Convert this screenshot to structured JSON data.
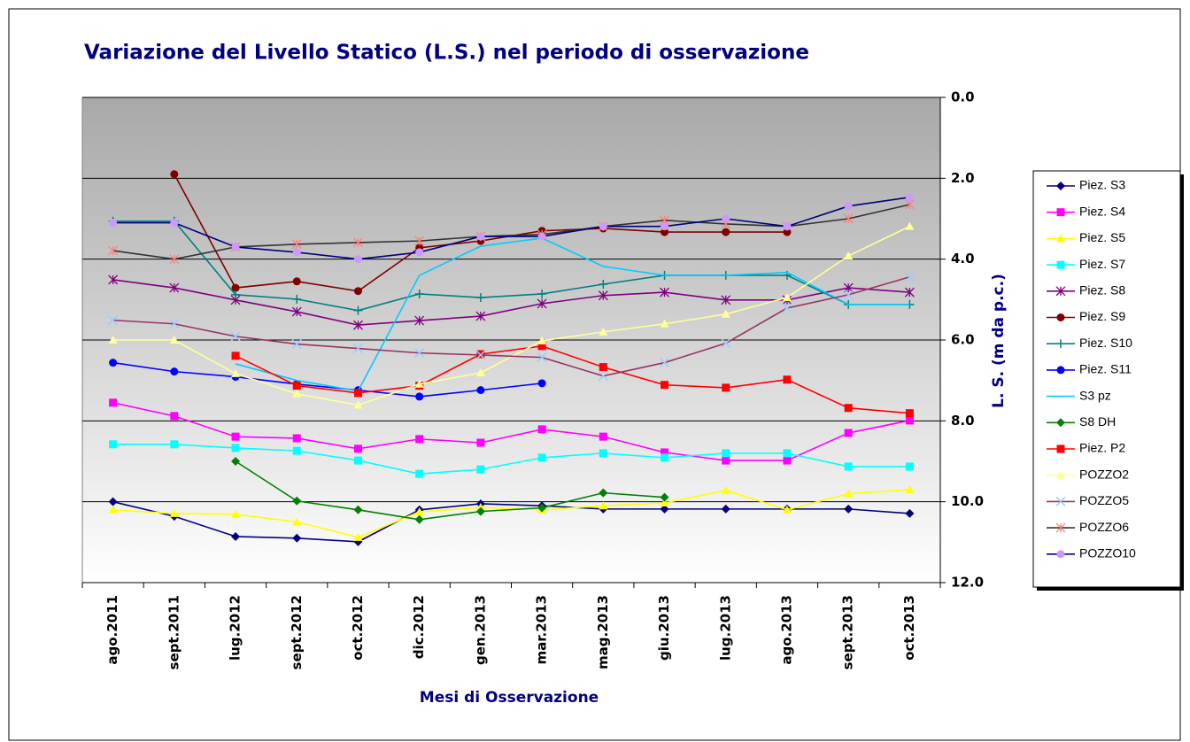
{
  "chart_data": {
    "type": "line",
    "title": "Variazione del Livello Statico (L.S.) nel periodo di osservazione",
    "x_label": "Mesi di Osservazione",
    "y_label": "L. S. (m da p.c.)",
    "categories": [
      "ago.2011",
      "sept.2011",
      "lug.2012",
      "sept.2012",
      "oct.2012",
      "dic.2012",
      "gen.2013",
      "mar.2013",
      "mag.2013",
      "giu.2013",
      "lug.2013",
      "ago.2013",
      "sept.2013",
      "oct.2013"
    ],
    "ylim": [
      0,
      12
    ],
    "y_inverted": true,
    "y_axis_side": "right",
    "yticks": [
      {
        "value": 0,
        "label": "0.0"
      },
      {
        "value": 2,
        "label": "2.0"
      },
      {
        "value": 4,
        "label": "4.0"
      },
      {
        "value": 6,
        "label": "6.0"
      },
      {
        "value": 8,
        "label": "8.0"
      },
      {
        "value": 10,
        "label": "10.0"
      },
      {
        "value": 12,
        "label": "12.0"
      }
    ],
    "grid": true,
    "legend": "right",
    "series": [
      {
        "name": "Piez. S3",
        "color": "#000080",
        "marker": "diamond",
        "marker_color": "#000080",
        "values": [
          10.0,
          10.36,
          10.86,
          10.9,
          10.99,
          10.2,
          10.05,
          10.1,
          10.18,
          10.18,
          10.18,
          10.18,
          10.18,
          10.29
        ]
      },
      {
        "name": "Piez. S4",
        "color": "#ff00ff",
        "marker": "square",
        "marker_color": "#ff00ff",
        "values": [
          7.55,
          7.88,
          8.39,
          8.43,
          8.69,
          8.45,
          8.54,
          8.21,
          8.39,
          8.78,
          8.98,
          8.98,
          8.3,
          7.99
        ]
      },
      {
        "name": "Piez. S5",
        "color": "#ffff00",
        "marker": "triangle",
        "marker_color": "#ffff00",
        "values": [
          10.2,
          10.29,
          10.31,
          10.5,
          10.88,
          10.25,
          10.14,
          10.2,
          10.1,
          10.03,
          9.72,
          10.2,
          9.8,
          9.7
        ]
      },
      {
        "name": "Piez. S7",
        "color": "#00ffff",
        "marker": "square",
        "marker_color": "#00ffff",
        "values": [
          8.58,
          8.58,
          8.67,
          8.74,
          8.98,
          9.31,
          9.2,
          8.91,
          8.8,
          8.91,
          8.8,
          8.8,
          9.13,
          9.13
        ]
      },
      {
        "name": "Piez. S8",
        "color": "#800080",
        "marker": "asterisk",
        "marker_color": "#800080",
        "values": [
          4.51,
          4.71,
          5.01,
          5.3,
          5.63,
          5.52,
          5.41,
          5.1,
          4.9,
          4.82,
          5.01,
          5.01,
          4.71,
          4.82
        ]
      },
      {
        "name": "Piez. S9",
        "color": "#800000",
        "marker": "circle",
        "marker_color": "#800000",
        "values": [
          null,
          1.9,
          4.71,
          4.55,
          4.79,
          3.72,
          3.55,
          3.3,
          3.24,
          3.33,
          3.33,
          3.33,
          null,
          null
        ]
      },
      {
        "name": "Piez. S10",
        "color": "#008080",
        "marker": "plus",
        "marker_color": "#008080",
        "values": [
          3.06,
          3.06,
          4.88,
          4.99,
          5.27,
          4.86,
          4.95,
          4.86,
          4.62,
          4.4,
          4.4,
          4.4,
          5.12,
          5.12
        ]
      },
      {
        "name": "Piez. S11",
        "color": "#0000ff",
        "marker": "circle",
        "marker_color": "#0000ff",
        "values": [
          6.56,
          6.78,
          6.91,
          7.09,
          7.24,
          7.4,
          7.24,
          7.07,
          null,
          null,
          null,
          null,
          null,
          null
        ]
      },
      {
        "name": "S3 pz",
        "color": "#00ccff",
        "marker": "none",
        "marker_color": "#00ccff",
        "values": [
          null,
          null,
          6.59,
          7.0,
          7.26,
          4.4,
          3.68,
          3.48,
          4.18,
          4.4,
          4.4,
          4.33,
          5.12,
          5.12
        ]
      },
      {
        "name": "S8 DH",
        "color": "#008000",
        "marker": "diamond",
        "marker_color": "#008000",
        "values": [
          null,
          null,
          9.0,
          9.98,
          10.2,
          10.44,
          10.24,
          10.15,
          9.78,
          9.89,
          null,
          null,
          null,
          null
        ]
      },
      {
        "name": "Piez. P2",
        "color": "#ff0000",
        "marker": "square",
        "marker_color": "#ff0000",
        "values": [
          null,
          null,
          6.39,
          7.13,
          7.31,
          7.13,
          6.35,
          6.15,
          6.67,
          7.11,
          7.18,
          6.98,
          7.68,
          7.81
        ]
      },
      {
        "name": "POZZO2",
        "color": "#ffff99",
        "marker": "triangle",
        "marker_color": "#ffff99",
        "values": [
          6.0,
          6.0,
          6.83,
          7.33,
          7.61,
          7.09,
          6.81,
          6.02,
          5.8,
          5.6,
          5.36,
          4.95,
          3.92,
          3.19
        ]
      },
      {
        "name": "POZZO5",
        "color": "#993366",
        "marker": "cross",
        "marker_color": "#99ccff",
        "values": [
          5.51,
          5.6,
          5.91,
          6.1,
          6.21,
          6.32,
          6.37,
          6.43,
          6.89,
          6.56,
          6.08,
          5.21,
          4.88,
          4.44
        ]
      },
      {
        "name": "POZZO6",
        "color": "#333333",
        "marker": "asterisk",
        "marker_color": "#ff8080",
        "values": [
          3.79,
          4.0,
          3.7,
          3.63,
          3.59,
          3.55,
          3.44,
          3.39,
          3.19,
          3.04,
          3.13,
          3.19,
          3.0,
          2.65
        ]
      },
      {
        "name": "POZZO10",
        "color": "#000080",
        "marker": "circle",
        "marker_color": "#cc99ff",
        "values": [
          3.1,
          3.1,
          3.7,
          3.83,
          4.0,
          3.83,
          3.44,
          3.44,
          3.19,
          3.19,
          3.0,
          3.19,
          2.69,
          2.47
        ]
      }
    ]
  }
}
